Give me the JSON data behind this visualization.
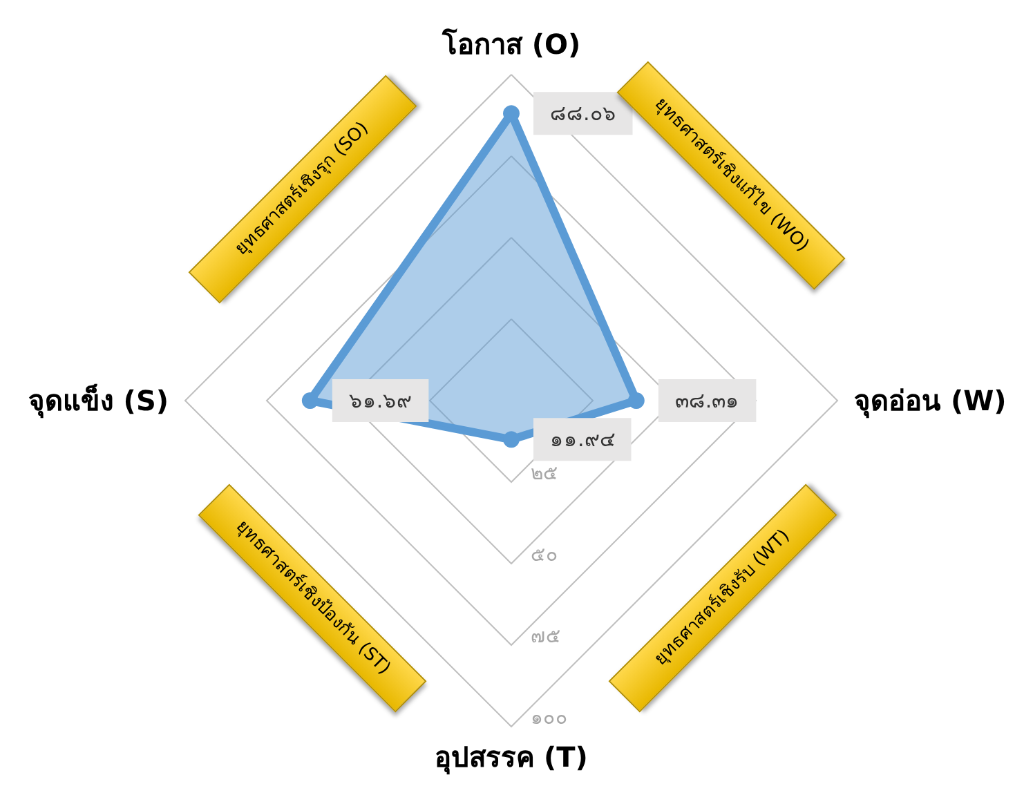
{
  "chart_data": {
    "type": "radar",
    "categories": [
      "โอกาส (O)",
      "จุดอ่อน (W)",
      "อุปสรรค (T)",
      "จุดแข็ง (S)"
    ],
    "series": [
      {
        "color": "#5b9bd5",
        "values": [
          88.06,
          38.31,
          11.94,
          61.69
        ],
        "value_labels": [
          "๘๘.๐๖",
          "๓๘.๓๑",
          "๑๑.๙๔",
          "๖๑.๖๙"
        ]
      }
    ],
    "ylim": [
      0,
      100
    ],
    "yticks": [
      {
        "value": 25,
        "label": "๒๕"
      },
      {
        "value": 50,
        "label": "๕๐"
      },
      {
        "value": 75,
        "label": "๗๕"
      },
      {
        "value": 100,
        "label": "๑๐๐"
      }
    ],
    "grid": true,
    "marker": "circle",
    "annotations": [
      "ยุทธศาสตร์เชิงรุก (SO)",
      "ยุทธศาสตร์เชิงแก้ไข (WO)",
      "ยุทธศาสตร์เชิงป้องกัน (ST)",
      "ยุทธศาสตร์เชิงรับ (WT)"
    ]
  }
}
